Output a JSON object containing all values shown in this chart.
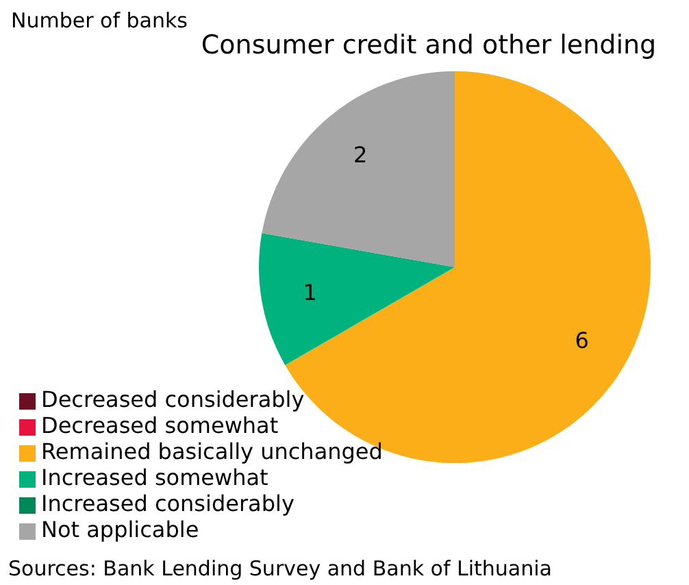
{
  "chart_data": {
    "type": "pie",
    "title": "Consumer credit and other lending",
    "subtitle": "Number of banks",
    "categories": [
      "Decreased considerably",
      "Decreased somewhat",
      "Remained basically unchanged",
      "Increased somewhat",
      "Increased considerably",
      "Not applicable"
    ],
    "values": [
      0,
      0,
      6,
      1,
      0,
      2
    ],
    "colors": [
      "#6d0f22",
      "#e4133f",
      "#fbae17",
      "#00b27e",
      "#00875a",
      "#a6a6a6"
    ],
    "value_labels": [
      null,
      null,
      "6",
      "1",
      null,
      "2"
    ],
    "legend": "bottom left",
    "annotations": [
      "Sources: Bank Lending Survey and Bank of Lithuania"
    ]
  }
}
